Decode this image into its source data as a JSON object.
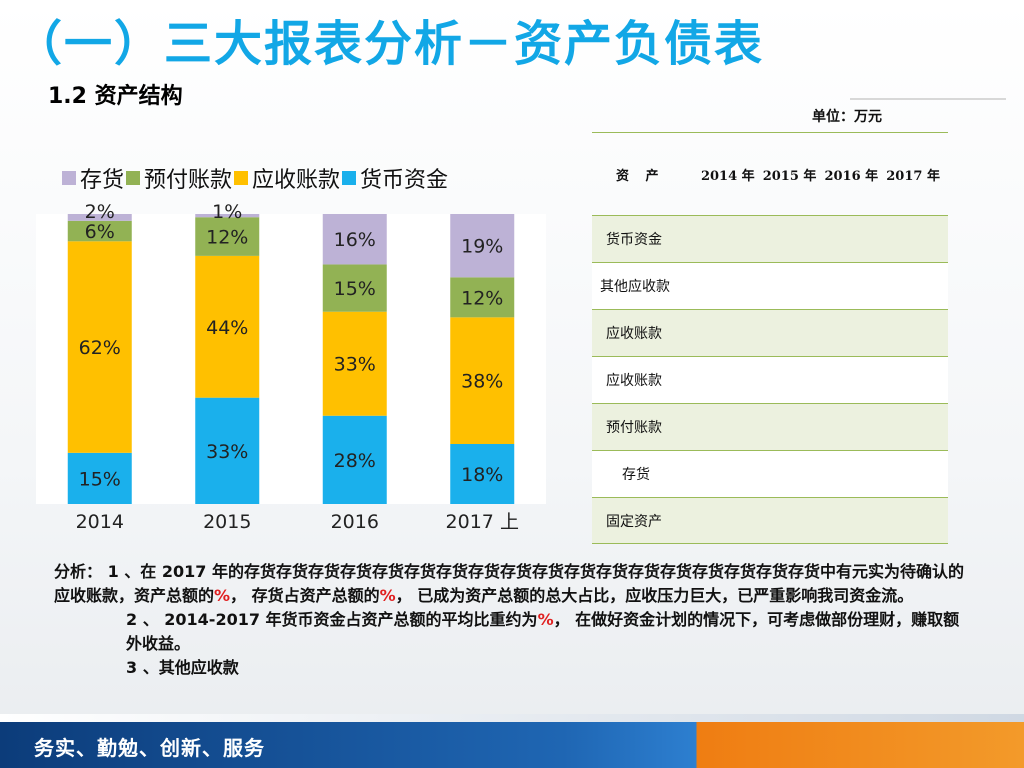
{
  "title": "（一）三大报表分析－资产负债表",
  "subtitle": "1.2 资产结构",
  "unit_label": "单位：万元",
  "table": {
    "header": {
      "label": "资 产",
      "years": [
        "2014 年",
        "2015 年",
        "2016 年",
        "2017 年"
      ]
    },
    "rows": [
      "货币资金",
      "其他应收款",
      "应收账款",
      "应收账款",
      "预付账款",
      "存货",
      "固定资产"
    ]
  },
  "chart_data": {
    "type": "bar",
    "stacked": true,
    "percent": true,
    "categories": [
      "2014",
      "2015",
      "2016",
      "2017 上"
    ],
    "series": [
      {
        "name": "货币资金",
        "color": "#1ab0ec",
        "values": [
          15,
          33,
          28,
          18
        ]
      },
      {
        "name": "应收账款",
        "color": "#ffc000",
        "values": [
          62,
          44,
          33,
          38
        ]
      },
      {
        "name": "预付账款",
        "color": "#92b254",
        "values": [
          6,
          12,
          15,
          12
        ]
      },
      {
        "name": "存货",
        "color": "#bdb2d6",
        "values": [
          2,
          1,
          16,
          19
        ]
      }
    ],
    "legend_order": [
      "存货",
      "预付账款",
      "应收账款",
      "货币资金"
    ],
    "data_labels": [
      [
        "15%",
        "33%",
        "28%",
        "18%"
      ],
      [
        "62%",
        "44%",
        "33%",
        "38%"
      ],
      [
        "6%",
        "12%",
        "15%",
        "12%"
      ],
      [
        "2%",
        "1%",
        "16%",
        "19%"
      ]
    ],
    "grid": false,
    "legend_position": "top"
  },
  "analysis": {
    "p1_a": "分析： 1 、在 2017 年的存货存货存货存货存货存货存货存货存货存货存货存货存货存货存货存货存货存货中有元实为待确认的应收账款，资产总额的",
    "pct1": "%",
    "p1_b": "， 存货占资产总额的",
    "pct2": "%",
    "p1_c": "， 已成为资产总额的总大占比，应收压力巨大，已严重影响我司资金流。",
    "p2_a": "2 、 2014-2017 年货币资金占资产总额的平均比重约为",
    "pct3": "%",
    "p2_b": "， 在做好资金计划的情况下，可考虑做部份理财，赚取额外收益。",
    "p3": "3 、其他应收款"
  },
  "footer": {
    "motto": "务实、勤勉、创新、服务"
  }
}
